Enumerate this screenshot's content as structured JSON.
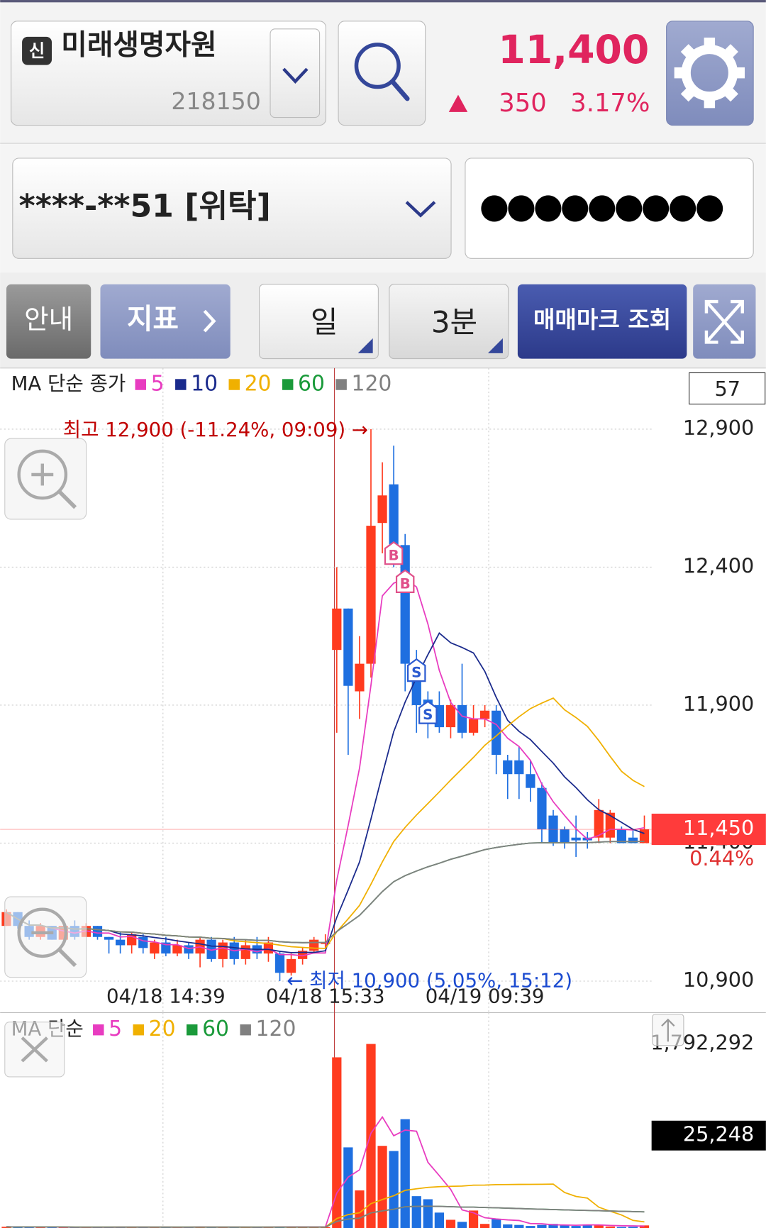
{
  "header": {
    "badge": "신",
    "stock_name": "미래생명자원",
    "code": "218150",
    "price": "11,400",
    "change": "350",
    "change_rate": "3.17%"
  },
  "account": {
    "number": "****-**51 [위탁]",
    "password": "●●●●●●●●●"
  },
  "toolbar": {
    "guide": "안내",
    "indicator": "지표",
    "period": "일",
    "interval": "3분",
    "trade_marks": "매매마크 조회"
  },
  "chart_data": [
    {
      "type": "candlestick",
      "legend_title": "MA 단순 종가",
      "count": 57,
      "ma": [
        {
          "name": "5",
          "color": "#e83cc0"
        },
        {
          "name": "10",
          "color": "#1a2a8c"
        },
        {
          "name": "20",
          "color": "#f0b000"
        },
        {
          "name": "60",
          "color": "#1a9a3a"
        },
        {
          "name": "120",
          "color": "#808080"
        }
      ],
      "up_color": "#ff3b1f",
      "down_color": "#1e6fe0",
      "categories": [
        null,
        null,
        null,
        null,
        null,
        null,
        null,
        null,
        null,
        null,
        null,
        null,
        null,
        null,
        "04/18 14:39",
        null,
        null,
        null,
        null,
        null,
        null,
        null,
        null,
        null,
        null,
        null,
        null,
        null,
        "04/18 15:33",
        null,
        null,
        null,
        null,
        null,
        null,
        null,
        null,
        null,
        null,
        null,
        null,
        null,
        "04/19 09:39",
        null,
        null,
        null,
        null,
        null,
        null,
        null,
        null,
        null,
        null,
        null,
        null,
        null,
        null
      ],
      "open": [
        11100,
        11150,
        11100,
        11060,
        11100,
        11050,
        11100,
        11060,
        11100,
        11060,
        11050,
        11030,
        11060,
        11000,
        11040,
        11000,
        11030,
        11000,
        11050,
        10980,
        11040,
        10980,
        11030,
        11000,
        11000,
        10930,
        10980,
        11010,
        11040,
        12100,
        12250,
        11950,
        12050,
        12560,
        12700,
        12480,
        12050,
        11920,
        11900,
        11820,
        11900,
        11800,
        11850,
        11880,
        11700,
        11700,
        11650,
        11600,
        11500,
        11450,
        11420,
        11420,
        11420,
        11420,
        11450,
        11420,
        11400
      ],
      "high": [
        11160,
        11150,
        11120,
        11110,
        11100,
        11100,
        11120,
        11110,
        11100,
        11060,
        11080,
        11080,
        11070,
        11050,
        11060,
        11050,
        11040,
        11060,
        11060,
        11050,
        11060,
        11050,
        11060,
        11060,
        11010,
        11000,
        11020,
        11060,
        11070,
        12400,
        12250,
        12150,
        12900,
        12780,
        12840,
        12520,
        12100,
        11950,
        11950,
        11920,
        12050,
        11900,
        11900,
        11900,
        11720,
        11750,
        11700,
        11620,
        11520,
        11460,
        11500,
        11440,
        11560,
        11520,
        11460,
        11450,
        11500
      ],
      "low": [
        11100,
        11090,
        11050,
        11050,
        11050,
        11050,
        11050,
        11060,
        11050,
        11000,
        11000,
        11000,
        11000,
        10980,
        10990,
        10990,
        10980,
        10950,
        10970,
        10950,
        10960,
        10960,
        10980,
        10970,
        10900,
        10920,
        10960,
        11000,
        11020,
        11800,
        11720,
        11850,
        12000,
        12450,
        12400,
        11950,
        11800,
        11780,
        11800,
        11780,
        11780,
        11790,
        11820,
        11650,
        11560,
        11560,
        11550,
        11400,
        11390,
        11380,
        11350,
        11380,
        11400,
        11400,
        11400,
        11400,
        11400
      ],
      "close": [
        11150,
        11100,
        11060,
        11100,
        11050,
        11100,
        11060,
        11100,
        11060,
        11050,
        11030,
        11070,
        11020,
        11040,
        11000,
        11030,
        11000,
        11050,
        10980,
        11040,
        10980,
        11030,
        11000,
        11040,
        10930,
        10980,
        11010,
        11050,
        11040,
        12250,
        11970,
        12050,
        12550,
        12660,
        12480,
        12050,
        11900,
        11880,
        11820,
        11900,
        11800,
        11850,
        11880,
        11720,
        11650,
        11650,
        11600,
        11450,
        11400,
        11400,
        11410,
        11410,
        11520,
        11510,
        11400,
        11400,
        11450
      ],
      "ylim": [
        10800,
        13100
      ],
      "yticks": [
        {
          "value": 12900,
          "label": "12,900"
        },
        {
          "value": 12400,
          "label": "12,400"
        },
        {
          "value": 11900,
          "label": "11,900"
        },
        {
          "value": 11400,
          "label": "11,400"
        },
        {
          "value": 10900,
          "label": "10,900"
        }
      ],
      "high_annotation": "최고 12,900 (-11.24%, 09:09) →",
      "low_annotation": "← 최저 10,900 (5.05%, 15:12)",
      "current": {
        "value": 11450,
        "label": "11,450"
      },
      "current_change": "0.44%",
      "trade_marks": [
        {
          "label": "B",
          "index": 34,
          "value": 12445
        },
        {
          "label": "B",
          "index": 35,
          "value": 12343
        },
        {
          "label": "S",
          "index": 36,
          "value": 12021
        },
        {
          "label": "S",
          "index": 37,
          "value": 11868
        }
      ]
    },
    {
      "type": "volume",
      "legend_title": "MA 단순",
      "ma": [
        {
          "name": "5",
          "color": "#e83cc0"
        },
        {
          "name": "20",
          "color": "#f0b000"
        },
        {
          "name": "60",
          "color": "#1a9a3a"
        },
        {
          "name": "120",
          "color": "#808080"
        }
      ],
      "values": [
        12000,
        9000,
        8000,
        10000,
        7000,
        9000,
        6000,
        8000,
        7000,
        9000,
        11000,
        8000,
        6000,
        10000,
        7000,
        9000,
        8000,
        12000,
        6000,
        9000,
        7000,
        8000,
        10000,
        9000,
        14000,
        9000,
        8000,
        11000,
        10000,
        1662000,
        785000,
        366000,
        1792292,
        800000,
        750000,
        1060000,
        310000,
        280000,
        150000,
        80000,
        60000,
        170000,
        40000,
        90000,
        35000,
        30000,
        20000,
        30000,
        40000,
        25000,
        20000,
        35000,
        30000,
        15000,
        10000,
        12000,
        25248
      ],
      "ylim": [
        0,
        1792292
      ],
      "yticks": [
        {
          "value": 1792292,
          "label": "1,792,292"
        }
      ],
      "current": {
        "value": 25248,
        "label": "25,248"
      }
    }
  ]
}
